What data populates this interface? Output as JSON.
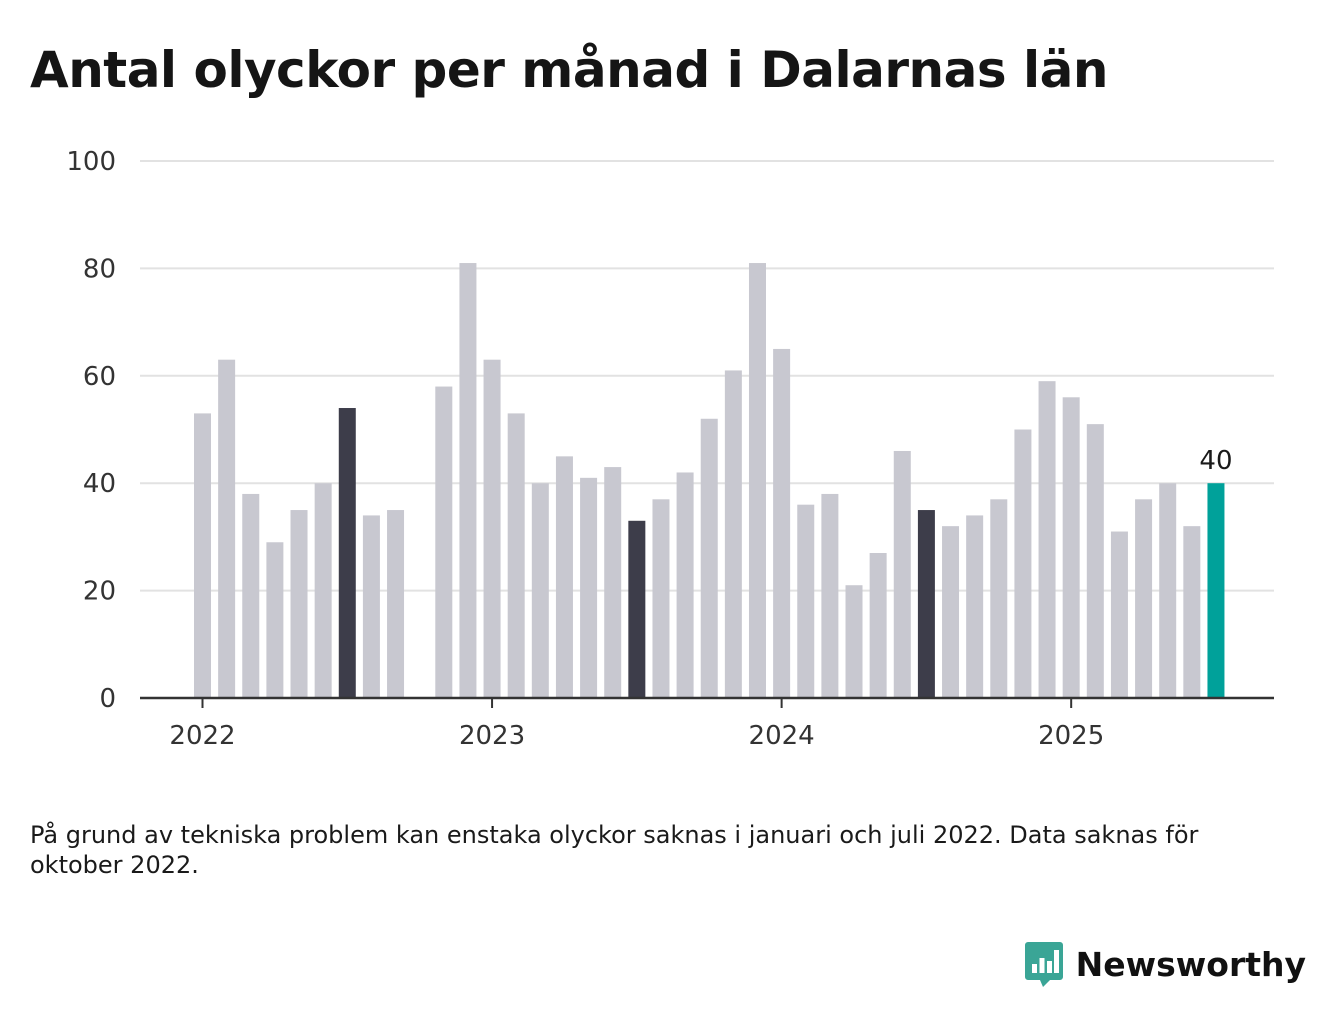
{
  "title": "Antal olyckor per månad i Dalarnas län",
  "footnote": "På grund av tekniska problem kan enstaka olyckor saknas i januari och juli 2022. Data saknas för oktober 2022.",
  "brand": {
    "name": "Newsworthy",
    "icon": "bar-chart-speech-bubble-icon",
    "color": "#3aa596"
  },
  "colors": {
    "default_bar": "#c8c8d0",
    "july_bar": "#3d3d4a",
    "latest_bar": "#00a19a",
    "grid": "#e2e2e2",
    "axis": "#333333"
  },
  "chart_data": {
    "type": "bar",
    "x_ticks": [
      "2022",
      "2023",
      "2024",
      "2025"
    ],
    "y_ticks": [
      0,
      20,
      40,
      60,
      80,
      100
    ],
    "ylim": [
      0,
      100
    ],
    "grid": true,
    "highlight_label": "40",
    "series": [
      {
        "categories": [
          "2022-01",
          "2022-02",
          "2022-03",
          "2022-04",
          "2022-05",
          "2022-06",
          "2022-07",
          "2022-08",
          "2022-09",
          "2022-10",
          "2022-11",
          "2022-12",
          "2023-01",
          "2023-02",
          "2023-03",
          "2023-04",
          "2023-05",
          "2023-06",
          "2023-07",
          "2023-08",
          "2023-09",
          "2023-10",
          "2023-11",
          "2023-12",
          "2024-01",
          "2024-02",
          "2024-03",
          "2024-04",
          "2024-05",
          "2024-06",
          "2024-07",
          "2024-08",
          "2024-09",
          "2024-10",
          "2024-11",
          "2024-12",
          "2025-01",
          "2025-02",
          "2025-03",
          "2025-04",
          "2025-05",
          "2025-06",
          "2025-07"
        ],
        "values": [
          53,
          63,
          38,
          29,
          35,
          40,
          54,
          34,
          35,
          null,
          58,
          81,
          63,
          53,
          40,
          45,
          41,
          43,
          33,
          37,
          42,
          52,
          61,
          81,
          65,
          36,
          38,
          21,
          27,
          46,
          35,
          32,
          34,
          37,
          50,
          59,
          56,
          51,
          31,
          37,
          40,
          32,
          40
        ],
        "highlight": [
          "",
          "",
          "",
          "",
          "",
          "",
          "july",
          "",
          "",
          "",
          "",
          "",
          "",
          "",
          "",
          "",
          "",
          "",
          "july",
          "",
          "",
          "",
          "",
          "",
          "",
          "",
          "",
          "",
          "",
          "",
          "july",
          "",
          "",
          "",
          "",
          "",
          "",
          "",
          "",
          "",
          "",
          "",
          "latest"
        ]
      }
    ]
  }
}
